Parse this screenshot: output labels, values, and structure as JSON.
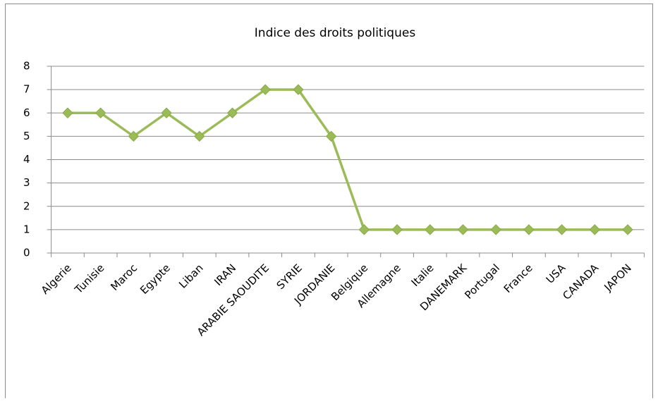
{
  "chart_data": {
    "type": "line",
    "title": "Indice des droits politiques",
    "categories": [
      "Algerie",
      "Tunisie",
      "Maroc",
      "Egypte",
      "Liban",
      "IRAN",
      "ARABIE SAOUDITE",
      "SYRIE",
      "JORDANIE",
      "Belgique",
      "Allemagne",
      "Italie",
      "DANEMARK",
      "Portugal",
      "France",
      "USA",
      "CANADA",
      "JAPON"
    ],
    "values": [
      6,
      6,
      5,
      6,
      5,
      6,
      7,
      7,
      5,
      1,
      1,
      1,
      1,
      1,
      1,
      1,
      1,
      1
    ],
    "color": "#9bbb59",
    "ylim": [
      0,
      8
    ],
    "yticks": [
      0,
      1,
      2,
      3,
      4,
      5,
      6,
      7,
      8
    ],
    "grid": true
  }
}
